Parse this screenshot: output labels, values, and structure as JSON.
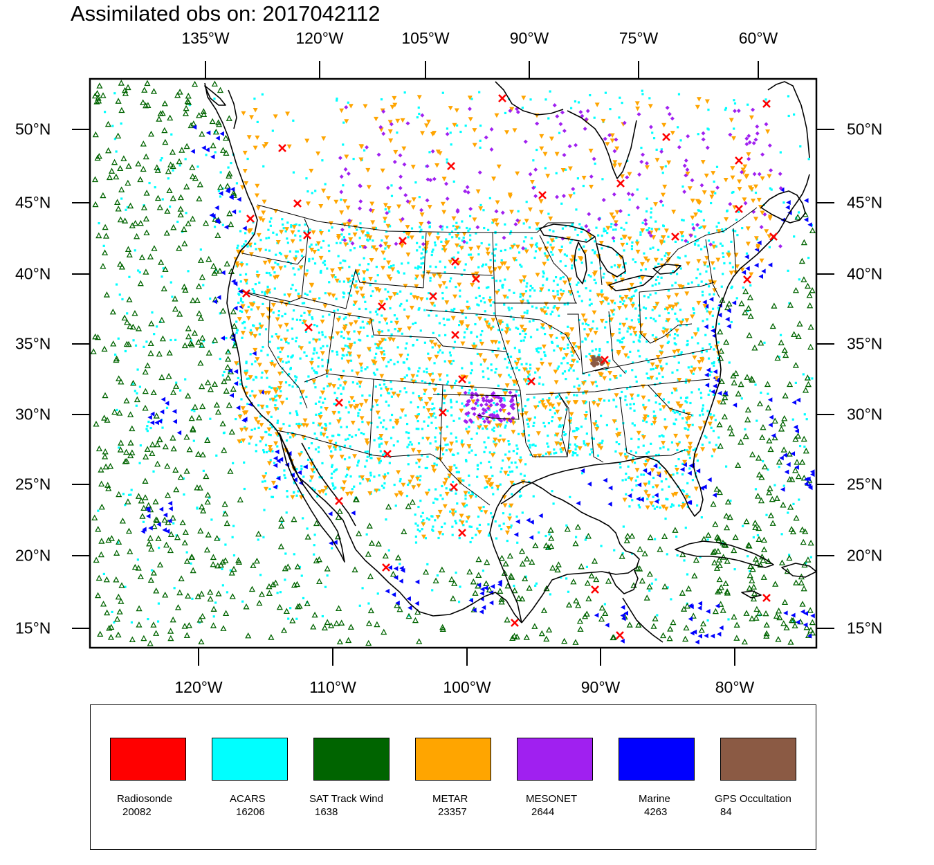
{
  "title": "Assimilated obs on: 2017042112",
  "top_lon_labels": [
    "135°W",
    "120°W",
    "105°W",
    "90°W",
    "75°W",
    "60°W"
  ],
  "bottom_lon_labels": [
    "120°W",
    "110°W",
    "100°W",
    "90°W",
    "80°W"
  ],
  "lat_labels": [
    "50°N",
    "45°N",
    "40°N",
    "35°N",
    "30°N",
    "25°N",
    "20°N",
    "15°N"
  ],
  "legend": [
    {
      "name": "Radiosonde",
      "count": "20082",
      "color": "#ff0000"
    },
    {
      "name": "ACARS",
      "count": "16206",
      "color": "#00ffff"
    },
    {
      "name": "SAT Track Wind",
      "count": "1638",
      "color": "#006400"
    },
    {
      "name": "METAR",
      "count": "23357",
      "color": "#ffa500"
    },
    {
      "name": "MESONET",
      "count": "2644",
      "color": "#a020f0"
    },
    {
      "name": "Marine",
      "count": "4263",
      "color": "#0000ff"
    },
    {
      "name": "GPS Occultation",
      "count": "84",
      "color": "#8b5a44"
    }
  ],
  "map": {
    "projection": "lambert-conformal",
    "lat_range": [
      14,
      53
    ],
    "lon_range": [
      -128,
      -74
    ]
  }
}
